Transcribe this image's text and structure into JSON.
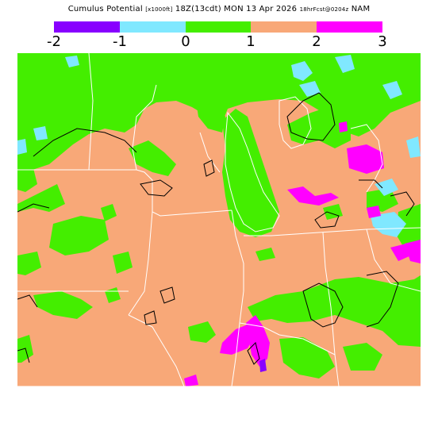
{
  "title": {
    "main": "Cumulus Potential",
    "units": "[x1000ft]",
    "valid": "18Z(13cdt) MON 13 Apr 2026",
    "forecast": "18hrFcst@0204z",
    "model": "NAM"
  },
  "legend": {
    "colors": [
      "#8800ff",
      "#80e8ff",
      "#44ee00",
      "#f8a878",
      "#ff00ff"
    ],
    "ticks": [
      "-2",
      "-1",
      "0",
      "1",
      "2",
      "3"
    ]
  },
  "map": {
    "colors": {
      "salmon": "#f8a878",
      "green": "#44ee00",
      "cyan": "#80e8ff",
      "magenta": "#ff00ff",
      "purple": "#8800ff",
      "borders": "#ffffff",
      "contours": "#000000"
    }
  }
}
